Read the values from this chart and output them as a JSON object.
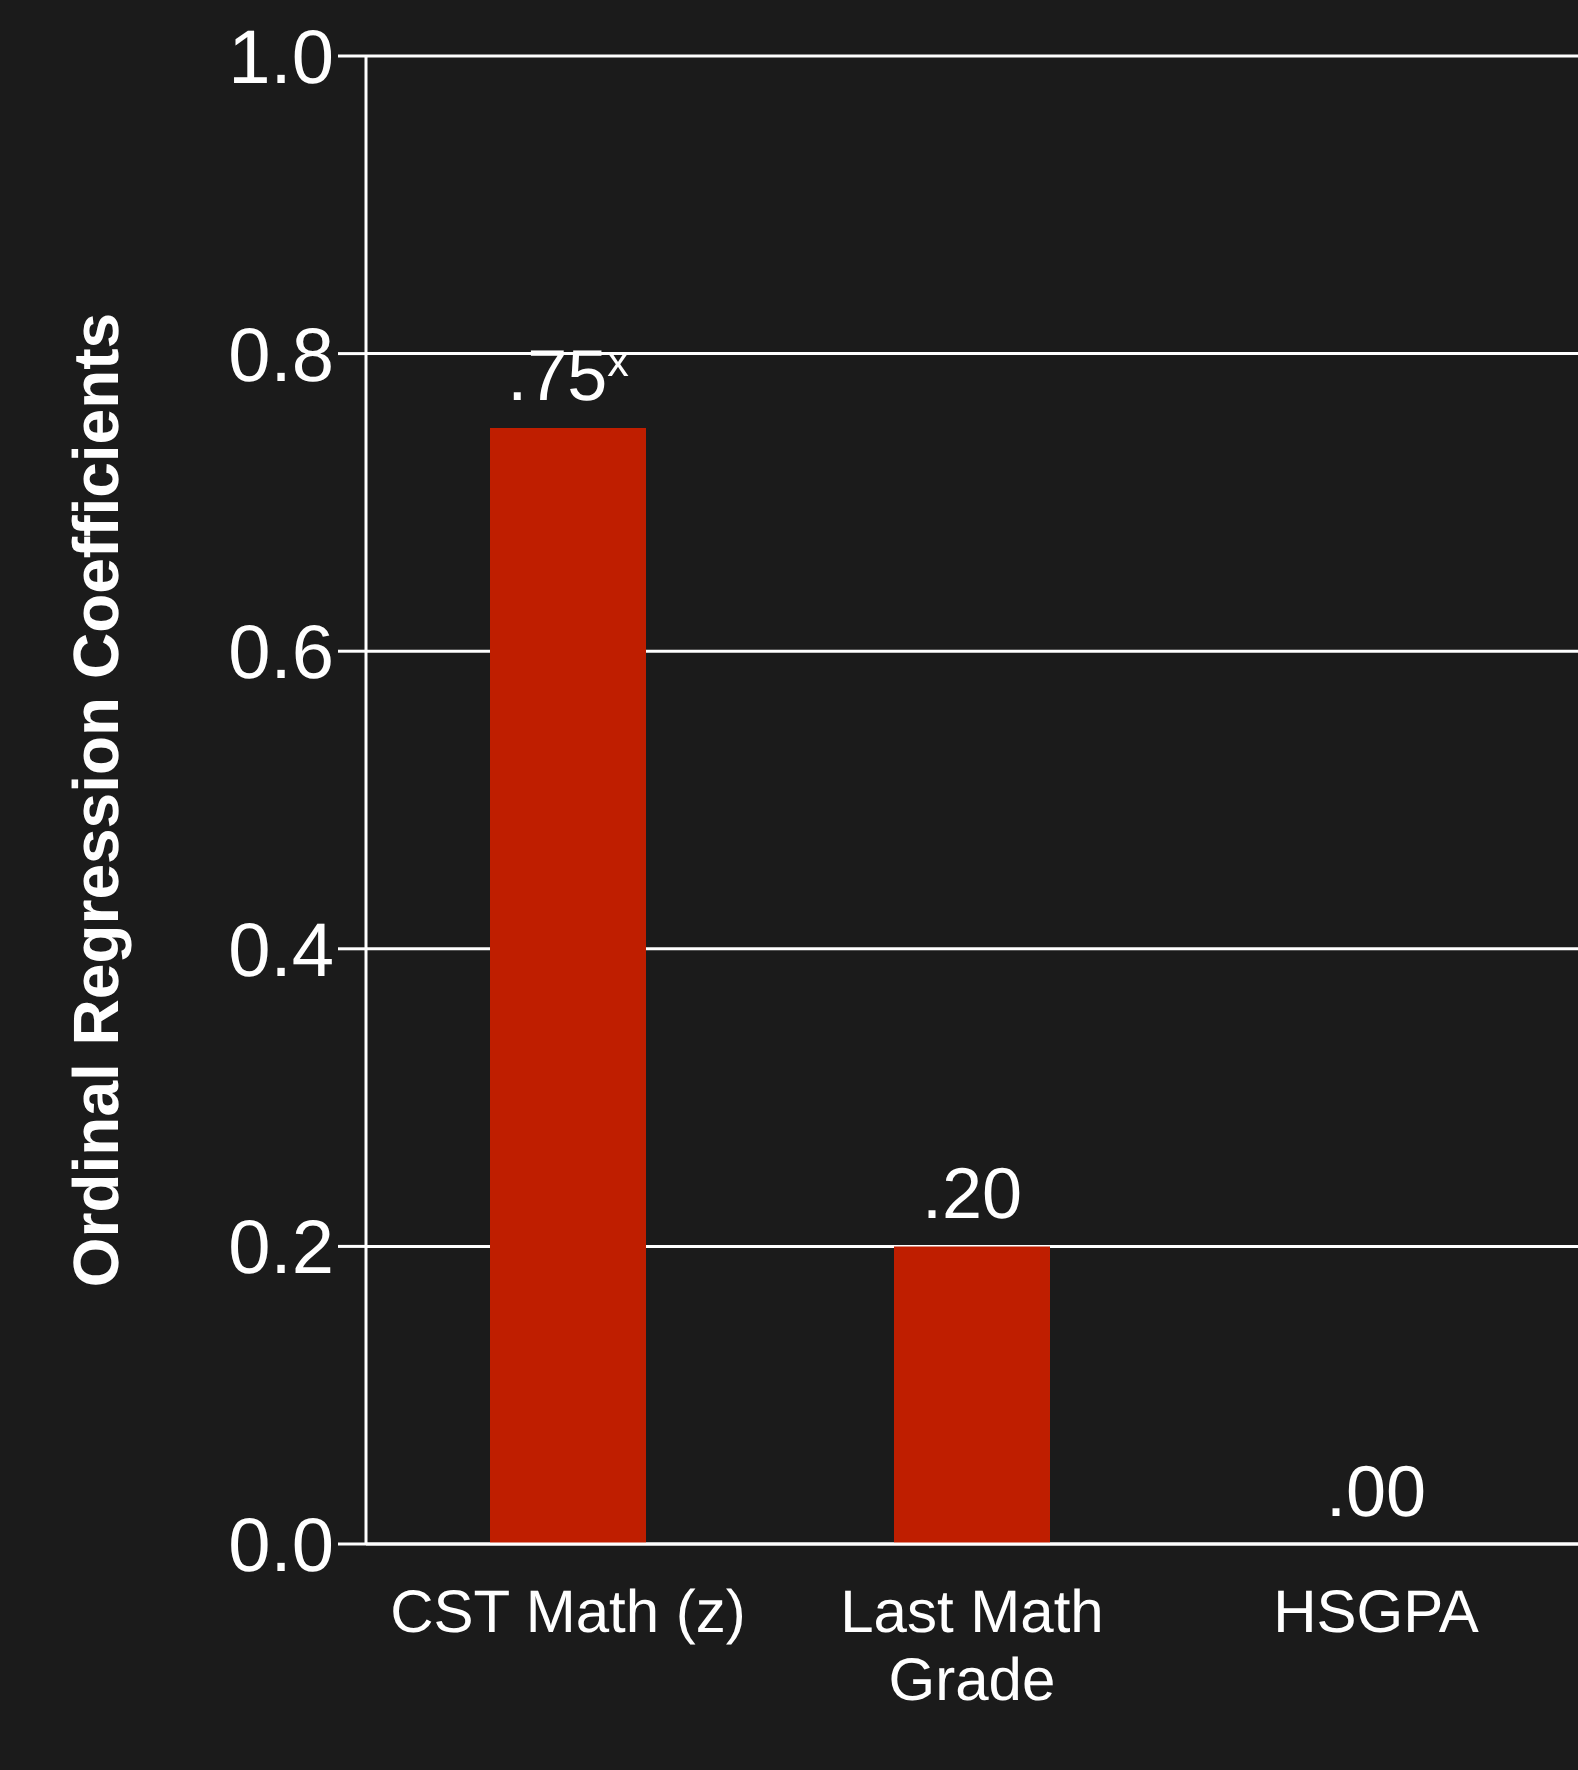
{
  "chart_data": {
    "type": "bar",
    "ylabel": "Ordinal Regression Coefficients",
    "categories": [
      "CST Math (z)",
      "Last Math Grade",
      "HSGPA"
    ],
    "values": [
      0.75,
      0.2,
      0
    ],
    "color": "#bf1e00",
    "value_labels": [
      ".75$^{x}$",
      ".20",
      ".00"
    ],
    "ylim": [
      0,
      1
    ],
    "yticks": [
      {
        "value": 0,
        "label": "0.0"
      },
      {
        "value": 0.2,
        "label": "0.2"
      },
      {
        "value": 0.4,
        "label": "0.4"
      },
      {
        "value": 0.6,
        "label": "0.6"
      },
      {
        "value": 0.8,
        "label": "0.8"
      },
      {
        "value": 1,
        "label": "1.0"
      }
    ],
    "grid": "y"
  }
}
